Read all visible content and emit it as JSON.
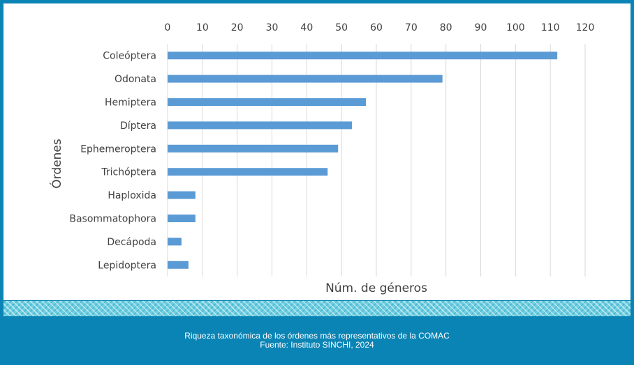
{
  "chart_data": {
    "type": "bar",
    "orientation": "horizontal",
    "categories": [
      "Coleóptera",
      "Odonata",
      "Hemiptera",
      "Díptera",
      "Ephemeroptera",
      "Trichóptera",
      "Haploxida",
      "Basommatophora",
      "Decápoda",
      "Lepidoptera"
    ],
    "values": [
      112,
      79,
      57,
      53,
      49,
      46,
      8,
      8,
      4,
      6
    ],
    "xlabel": "Núm. de géneros",
    "ylabel": "Órdenes",
    "xlim": [
      0,
      120
    ],
    "xticks": [
      "0",
      "10",
      "20",
      "30",
      "40",
      "50",
      "60",
      "70",
      "80",
      "90",
      "100",
      "110",
      "120"
    ],
    "x_axis_position": "top",
    "grid": "vertical",
    "bar_color": "#5b9bd5"
  },
  "caption": {
    "line1": "Riqueza taxonómica de los órdenes más representativos de la COMAC",
    "line2": "Fuente: Instituto SINCHI, 2024"
  }
}
